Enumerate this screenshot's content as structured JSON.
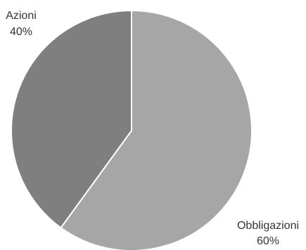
{
  "chart_data": {
    "type": "pie",
    "title": "",
    "start": "top",
    "direction": "clockwise",
    "slices": [
      {
        "label": "Obbligazioni",
        "value": 60,
        "display": "60%",
        "color": "#a6a6a6"
      },
      {
        "label": "Azioni",
        "value": 40,
        "display": "40%",
        "color": "#7f7f7f"
      }
    ],
    "legend": "none",
    "slice_border_color": "#ffffff"
  }
}
